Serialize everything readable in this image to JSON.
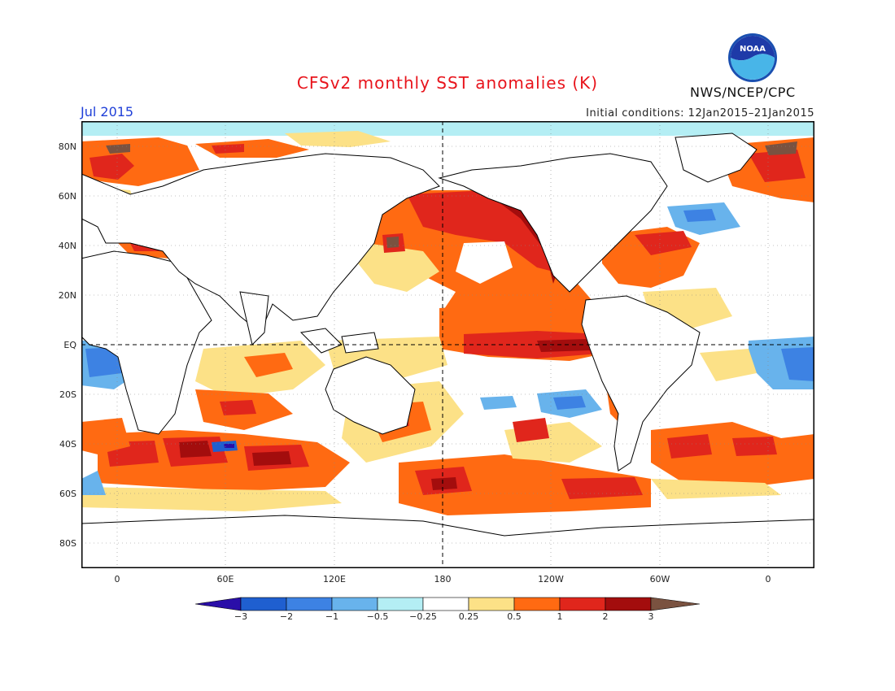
{
  "header": {
    "title": "CFSv2 monthly SST anomalies (K)",
    "period": "Jul 2015",
    "initial_conditions": "Initial conditions: 12Jan2015–21Jan2015",
    "agency": "NWS/NCEP/CPC",
    "logo_text": "NOAA"
  },
  "axes": {
    "lat_labels": [
      "80N",
      "60N",
      "40N",
      "20N",
      "EQ",
      "20S",
      "40S",
      "60S",
      "80S"
    ],
    "lon_labels": [
      "0",
      "60E",
      "120E",
      "180",
      "120W",
      "60W",
      "0"
    ]
  },
  "colorbar": {
    "labels": [
      "−3",
      "−2",
      "−1",
      "−0.5",
      "−0.25",
      "0.25",
      "0.5",
      "1",
      "2",
      "3"
    ],
    "colors": [
      "#2a0ea8",
      "#1f5fd0",
      "#3d82e3",
      "#68b3ec",
      "#b4eef4",
      "#ffffff",
      "#fce187",
      "#ff6a12",
      "#e0261c",
      "#a30d0d",
      "#7a5240"
    ]
  },
  "colors": {
    "title": "#e8141c",
    "period": "#1f3fd8",
    "land": "#ffffff",
    "coast": "#000000"
  }
}
